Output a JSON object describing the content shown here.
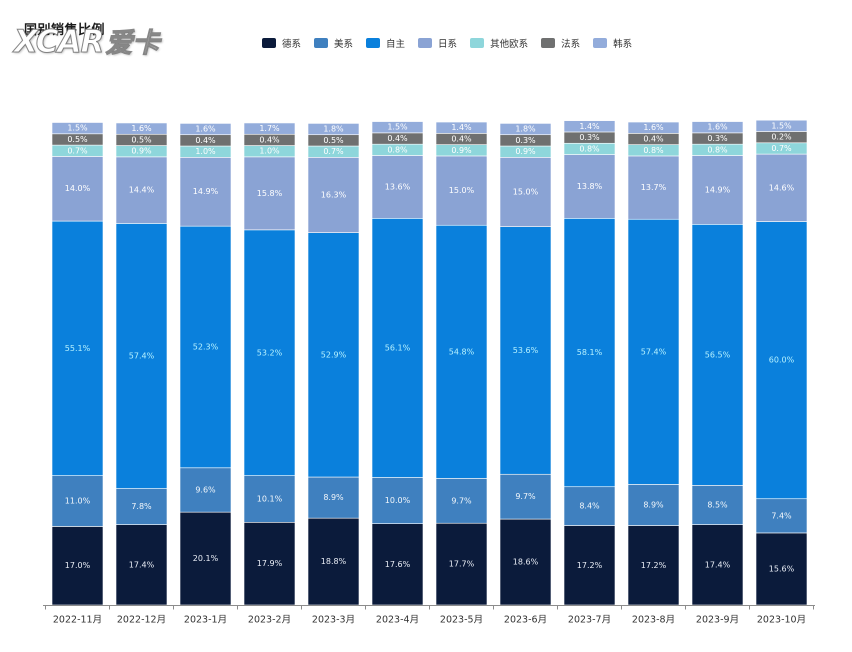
{
  "watermark": {
    "latin": "XCAR",
    "cjk": "爱卡"
  },
  "chart_data": {
    "type": "bar",
    "stacked": true,
    "title": "国别销售比例",
    "categories": [
      "2022-11月",
      "2022-12月",
      "2023-1月",
      "2023-2月",
      "2023-3月",
      "2023-4月",
      "2023-5月",
      "2023-6月",
      "2023-7月",
      "2023-8月",
      "2023-9月",
      "2023-10月"
    ],
    "value_suffix": "%",
    "legend": "top-center",
    "grid": false,
    "series": [
      {
        "name": "德系",
        "color": "#0b1b3b",
        "label_color": "#e9edf5",
        "values": [
          17.0,
          17.4,
          20.1,
          17.9,
          18.8,
          17.6,
          17.7,
          18.6,
          17.2,
          17.2,
          17.4,
          15.6
        ]
      },
      {
        "name": "美系",
        "color": "#3f80bf",
        "label_color": "#f2f6fb",
        "values": [
          11.0,
          7.8,
          9.6,
          10.1,
          8.9,
          10.0,
          9.7,
          9.7,
          8.4,
          8.9,
          8.5,
          7.4
        ]
      },
      {
        "name": "自主",
        "color": "#0a80dc",
        "label_color": "#b5f1ff",
        "values": [
          55.1,
          57.4,
          52.3,
          53.2,
          52.9,
          56.1,
          54.8,
          53.6,
          58.1,
          57.4,
          56.5,
          60.0
        ]
      },
      {
        "name": "日系",
        "color": "#8aa3d4",
        "label_color": "#ffffff",
        "values": [
          14.0,
          14.4,
          14.9,
          15.8,
          16.3,
          13.6,
          15.0,
          15.0,
          13.8,
          13.7,
          14.9,
          14.6
        ]
      },
      {
        "name": "其他欧系",
        "color": "#8ed6db",
        "label_color": "#ffffff",
        "values": [
          0.7,
          0.9,
          1.0,
          1.0,
          0.7,
          0.8,
          0.9,
          0.9,
          0.8,
          0.8,
          0.8,
          0.7
        ]
      },
      {
        "name": "法系",
        "color": "#6f7070",
        "label_color": "#ffffff",
        "values": [
          0.5,
          0.5,
          0.4,
          0.4,
          0.5,
          0.4,
          0.4,
          0.3,
          0.3,
          0.4,
          0.3,
          0.2
        ]
      },
      {
        "name": "韩系",
        "color": "#93acdb",
        "label_color": "#ffffff",
        "values": [
          1.5,
          1.6,
          1.6,
          1.7,
          1.8,
          1.5,
          1.4,
          1.8,
          1.4,
          1.6,
          1.6,
          1.5
        ]
      }
    ]
  }
}
